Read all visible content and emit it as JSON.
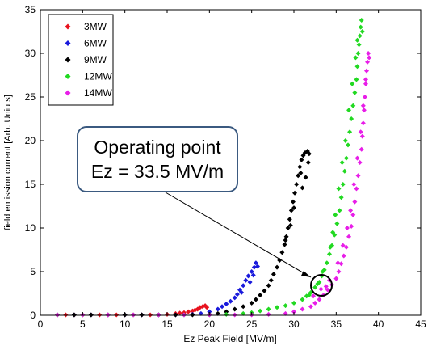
{
  "chart_data": {
    "type": "scatter",
    "title": "",
    "xlabel": "Ez Peak Field [MV/m]",
    "ylabel": "field emission current [Arb. Uniuts]",
    "xlim": [
      0,
      45
    ],
    "ylim": [
      0,
      35
    ],
    "xticks": [
      "0",
      "5",
      "10",
      "15",
      "20",
      "25",
      "30",
      "35",
      "40",
      "45"
    ],
    "yticks": [
      "0",
      "5",
      "10",
      "15",
      "20",
      "25",
      "30",
      "35"
    ],
    "grid": false,
    "legend_position": "top-left",
    "series": [
      {
        "name": "3MW",
        "color": "#e8121e",
        "points": [
          [
            2,
            0.05
          ],
          [
            3,
            0.05
          ],
          [
            4,
            0.05
          ],
          [
            5,
            0.05
          ],
          [
            6,
            0.05
          ],
          [
            7,
            0.05
          ],
          [
            8,
            0.05
          ],
          [
            9,
            0.05
          ],
          [
            10,
            0.05
          ],
          [
            11,
            0.05
          ],
          [
            12,
            0.05
          ],
          [
            13,
            0.05
          ],
          [
            14,
            0.05
          ],
          [
            15,
            0.1
          ],
          [
            16,
            0.2
          ],
          [
            16.5,
            0.25
          ],
          [
            17,
            0.3
          ],
          [
            17.5,
            0.4
          ],
          [
            18,
            0.5
          ],
          [
            18.3,
            0.6
          ],
          [
            18.6,
            0.7
          ],
          [
            18.9,
            0.9
          ],
          [
            19.2,
            1.0
          ],
          [
            19.5,
            1.1
          ],
          [
            19.7,
            0.9
          ]
        ]
      },
      {
        "name": "6MW",
        "color": "#1a1adc",
        "points": [
          [
            2,
            0.05
          ],
          [
            4,
            0.05
          ],
          [
            6,
            0.05
          ],
          [
            8,
            0.05
          ],
          [
            10,
            0.05
          ],
          [
            12,
            0.05
          ],
          [
            14,
            0.05
          ],
          [
            16,
            0.05
          ],
          [
            18,
            0.1
          ],
          [
            19,
            0.2
          ],
          [
            20,
            0.4
          ],
          [
            21,
            0.7
          ],
          [
            21.5,
            1.0
          ],
          [
            22,
            1.3
          ],
          [
            22.5,
            1.6
          ],
          [
            23,
            2.0
          ],
          [
            23.3,
            2.4
          ],
          [
            23.6,
            2.9
          ],
          [
            24,
            3.4
          ],
          [
            24.3,
            4.0
          ],
          [
            24.6,
            4.5
          ],
          [
            25,
            5.0
          ],
          [
            25.3,
            5.5
          ],
          [
            25.5,
            6.0
          ],
          [
            25.7,
            5.6
          ],
          [
            25.2,
            4.6
          ],
          [
            24.8,
            3.8
          ],
          [
            23.8,
            2.6
          ]
        ]
      },
      {
        "name": "9MW",
        "color": "#000000",
        "points": [
          [
            2,
            0.05
          ],
          [
            4,
            0.05
          ],
          [
            6,
            0.05
          ],
          [
            8,
            0.05
          ],
          [
            10,
            0.05
          ],
          [
            12,
            0.05
          ],
          [
            14,
            0.05
          ],
          [
            16,
            0.05
          ],
          [
            18,
            0.05
          ],
          [
            20,
            0.1
          ],
          [
            21,
            0.2
          ],
          [
            22,
            0.4
          ],
          [
            23,
            0.7
          ],
          [
            24,
            1.0
          ],
          [
            25,
            1.4
          ],
          [
            25.5,
            1.8
          ],
          [
            26,
            2.3
          ],
          [
            26.5,
            2.8
          ],
          [
            27,
            3.4
          ],
          [
            27.3,
            4.0
          ],
          [
            27.6,
            4.7
          ],
          [
            28,
            5.5
          ],
          [
            28.3,
            6.3
          ],
          [
            28.6,
            7.2
          ],
          [
            28.9,
            8.1
          ],
          [
            29.1,
            9.0
          ],
          [
            29.3,
            10.0
          ],
          [
            29.5,
            11.0
          ],
          [
            29.7,
            12.0
          ],
          [
            29.9,
            13.0
          ],
          [
            30.1,
            14.0
          ],
          [
            30.3,
            15.0
          ],
          [
            30.5,
            16.0
          ],
          [
            30.7,
            17.0
          ],
          [
            30.9,
            17.8
          ],
          [
            31.1,
            18.3
          ],
          [
            31.3,
            18.6
          ],
          [
            31.6,
            18.8
          ],
          [
            31.8,
            18.5
          ],
          [
            30.8,
            16.3
          ],
          [
            30.0,
            12.3
          ],
          [
            29.6,
            10.3
          ],
          [
            29.0,
            8.6
          ],
          [
            31.0,
            14.6
          ],
          [
            31.4,
            15.8
          ],
          [
            31.7,
            17.5
          ]
        ]
      },
      {
        "name": "12MW",
        "color": "#22d922",
        "points": [
          [
            2,
            0.05
          ],
          [
            5,
            0.05
          ],
          [
            8,
            0.05
          ],
          [
            11,
            0.05
          ],
          [
            14,
            0.05
          ],
          [
            17,
            0.05
          ],
          [
            20,
            0.05
          ],
          [
            22,
            0.1
          ],
          [
            24,
            0.2
          ],
          [
            25,
            0.3
          ],
          [
            26,
            0.5
          ],
          [
            27,
            0.7
          ],
          [
            28,
            0.9
          ],
          [
            29,
            1.1
          ],
          [
            30,
            1.4
          ],
          [
            31,
            1.8
          ],
          [
            31.5,
            2.2
          ],
          [
            32,
            2.6
          ],
          [
            32.5,
            3.2
          ],
          [
            33,
            3.8
          ],
          [
            33.3,
            4.5
          ],
          [
            33.6,
            5.2
          ],
          [
            33.9,
            6.0
          ],
          [
            34.2,
            7.0
          ],
          [
            34.5,
            8.0
          ],
          [
            34.8,
            9.2
          ],
          [
            35.1,
            10.5
          ],
          [
            35.4,
            12.0
          ],
          [
            35.6,
            13.5
          ],
          [
            35.8,
            15.0
          ],
          [
            36,
            16.5
          ],
          [
            36.2,
            18.0
          ],
          [
            36.4,
            19.5
          ],
          [
            36.6,
            21.0
          ],
          [
            36.8,
            22.5
          ],
          [
            37,
            24.0
          ],
          [
            37.2,
            25.5
          ],
          [
            37.4,
            27.0
          ],
          [
            37.5,
            28.5
          ],
          [
            37.6,
            30.0
          ],
          [
            37.7,
            31.0
          ],
          [
            37.8,
            32.0
          ],
          [
            37.9,
            33.0
          ],
          [
            38,
            33.8
          ],
          [
            38.1,
            32.5
          ],
          [
            37.5,
            31.5
          ],
          [
            37.3,
            29.5
          ],
          [
            36.9,
            26.5
          ],
          [
            36.5,
            23.5
          ],
          [
            36.1,
            20.0
          ],
          [
            35.7,
            17.5
          ],
          [
            35.3,
            14.5
          ],
          [
            34.9,
            11.5
          ],
          [
            34.6,
            9.5
          ],
          [
            34.3,
            7.8
          ],
          [
            33.4,
            5.0
          ],
          [
            32.8,
            3.6
          ],
          [
            31.8,
            2.3
          ]
        ]
      },
      {
        "name": "14MW",
        "color": "#e81ee8",
        "points": [
          [
            2,
            0.05
          ],
          [
            5,
            0.05
          ],
          [
            8,
            0.05
          ],
          [
            11,
            0.05
          ],
          [
            14,
            0.05
          ],
          [
            17,
            0.05
          ],
          [
            20,
            0.05
          ],
          [
            23,
            0.05
          ],
          [
            25,
            0.05
          ],
          [
            27,
            0.1
          ],
          [
            29,
            0.2
          ],
          [
            30,
            0.4
          ],
          [
            31,
            0.7
          ],
          [
            32,
            1.0
          ],
          [
            32.5,
            1.4
          ],
          [
            33,
            1.8
          ],
          [
            33.5,
            2.3
          ],
          [
            34,
            2.9
          ],
          [
            34.5,
            3.5
          ],
          [
            35,
            4.2
          ],
          [
            35.3,
            5.0
          ],
          [
            35.6,
            5.9
          ],
          [
            35.9,
            6.8
          ],
          [
            36.2,
            7.8
          ],
          [
            36.5,
            9.0
          ],
          [
            36.8,
            10.2
          ],
          [
            37,
            11.5
          ],
          [
            37.2,
            13.0
          ],
          [
            37.4,
            14.5
          ],
          [
            37.6,
            16.0
          ],
          [
            37.8,
            17.5
          ],
          [
            38,
            19.0
          ],
          [
            38.1,
            20.5
          ],
          [
            38.2,
            22.0
          ],
          [
            38.3,
            23.5
          ],
          [
            38.4,
            25.0
          ],
          [
            38.5,
            26.5
          ],
          [
            38.6,
            28.0
          ],
          [
            38.7,
            29.0
          ],
          [
            38.8,
            30.0
          ],
          [
            38.9,
            29.5
          ],
          [
            38.5,
            27.0
          ],
          [
            38.2,
            24.0
          ],
          [
            37.9,
            21.0
          ],
          [
            37.5,
            18.0
          ],
          [
            37.1,
            15.0
          ],
          [
            36.7,
            12.0
          ],
          [
            36.3,
            10.0
          ],
          [
            35.8,
            8.0
          ],
          [
            35.2,
            6.0
          ],
          [
            34.2,
            4.0
          ],
          [
            33.2,
            3.0
          ],
          [
            32.3,
            2.2
          ],
          [
            33.8,
            3.3
          ]
        ]
      }
    ],
    "annotation": {
      "line1": "Operating point",
      "line2": "Ez = 33.5 MV/m",
      "x": 33.5,
      "y": 3.2
    }
  }
}
